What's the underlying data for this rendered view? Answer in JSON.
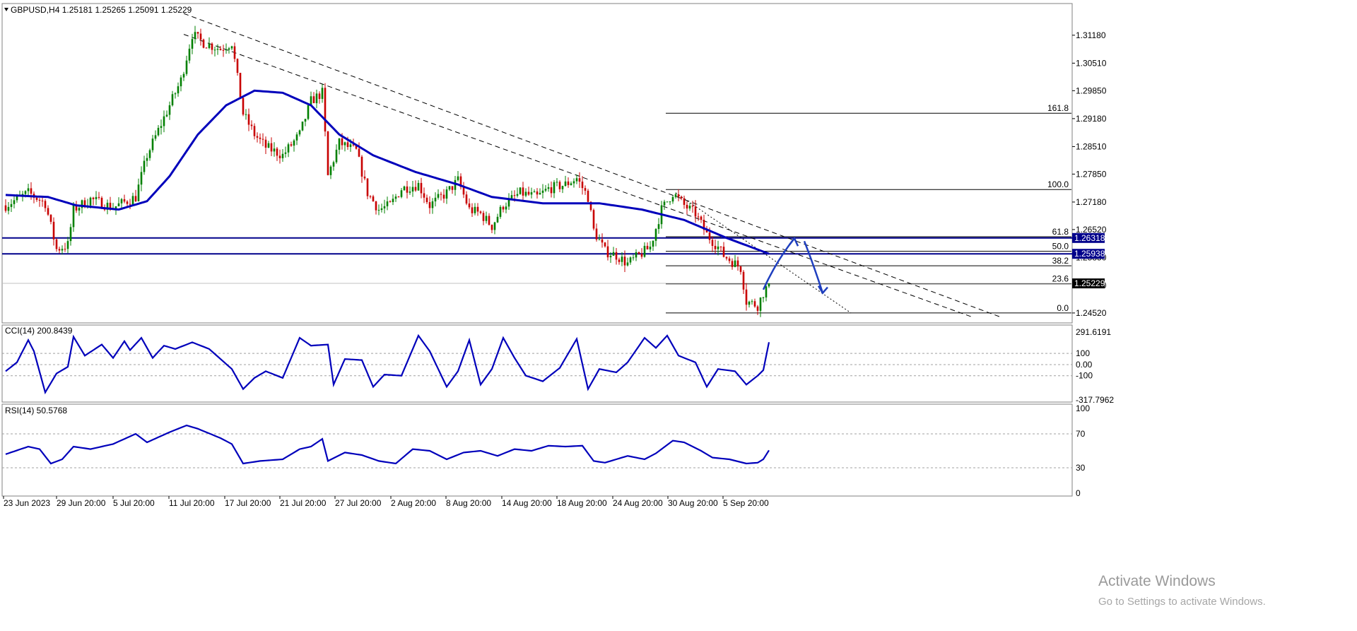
{
  "chart_data": {
    "type": "candlestick",
    "symbol": "GBPUSD",
    "timeframe": "H4",
    "quote": {
      "open": "1.25181",
      "high": "1.25265",
      "low": "1.25091",
      "close": "1.25229"
    },
    "colors": {
      "bull": "#008000",
      "bear": "#c80000",
      "ma": "#0000bb",
      "level": "#00008b",
      "annotation": "#1f3fbf"
    },
    "price_axis": {
      "range": [
        1.244,
        1.3155
      ],
      "ticks": [
        "1.31180",
        "1.30510",
        "1.29850",
        "1.29180",
        "1.28510",
        "1.27850",
        "1.27180",
        "1.26520",
        "1.25850",
        "1.25180",
        "1.24520"
      ],
      "current_price": "1.25229"
    },
    "time_axis": {
      "ticks": [
        "23 Jun 2023",
        "29 Jun 20:00",
        "5 Jul 20:00",
        "11 Jul 20:00",
        "17 Jul 20:00",
        "21 Jul 20:00",
        "27 Jul 20:00",
        "2 Aug 20:00",
        "8 Aug 20:00",
        "14 Aug 20:00",
        "18 Aug 20:00",
        "24 Aug 20:00",
        "30 Aug 20:00",
        "5 Sep 20:00"
      ]
    },
    "horizontal_levels": [
      {
        "price": 1.26318,
        "label": "1.26318"
      },
      {
        "price": 1.25938,
        "label": "1.25938"
      }
    ],
    "fibonacci": {
      "start": 1.2452,
      "end": 1.2748,
      "levels": [
        {
          "ratio": 1.618,
          "label": "161.8"
        },
        {
          "ratio": 1.0,
          "label": "100.0"
        },
        {
          "ratio": 0.618,
          "label": "61.8"
        },
        {
          "ratio": 0.5,
          "label": "50.0"
        },
        {
          "ratio": 0.382,
          "label": "38.2"
        },
        {
          "ratio": 0.236,
          "label": "23.6"
        },
        {
          "ratio": 0.0,
          "label": "0.0"
        }
      ]
    },
    "price_waypoints": [
      [
        0,
        1.271
      ],
      [
        8,
        1.274
      ],
      [
        14,
        1.2715
      ],
      [
        18,
        1.2605
      ],
      [
        22,
        1.2615
      ],
      [
        24,
        1.27
      ],
      [
        30,
        1.2725
      ],
      [
        38,
        1.2705
      ],
      [
        46,
        1.273
      ],
      [
        50,
        1.283
      ],
      [
        56,
        1.292
      ],
      [
        62,
        1.301
      ],
      [
        66,
        1.312
      ],
      [
        70,
        1.31
      ],
      [
        76,
        1.3085
      ],
      [
        80,
        1.31
      ],
      [
        84,
        1.293
      ],
      [
        88,
        1.288
      ],
      [
        92,
        1.285
      ],
      [
        98,
        1.283
      ],
      [
        104,
        1.288
      ],
      [
        108,
        1.296
      ],
      [
        112,
        1.298
      ],
      [
        114,
        1.278
      ],
      [
        118,
        1.286
      ],
      [
        124,
        1.284
      ],
      [
        128,
        1.274
      ],
      [
        132,
        1.27
      ],
      [
        136,
        1.271
      ],
      [
        140,
        1.275
      ],
      [
        146,
        1.276
      ],
      [
        150,
        1.271
      ],
      [
        156,
        1.274
      ],
      [
        160,
        1.277
      ],
      [
        164,
        1.27
      ],
      [
        168,
        1.269
      ],
      [
        172,
        1.266
      ],
      [
        176,
        1.271
      ],
      [
        182,
        1.274
      ],
      [
        188,
        1.273
      ],
      [
        192,
        1.275
      ],
      [
        198,
        1.276
      ],
      [
        202,
        1.2775
      ],
      [
        206,
        1.273
      ],
      [
        208,
        1.265
      ],
      [
        212,
        1.26
      ],
      [
        216,
        1.259
      ],
      [
        220,
        1.257
      ],
      [
        224,
        1.259
      ],
      [
        228,
        1.261
      ],
      [
        232,
        1.27
      ],
      [
        236,
        1.274
      ],
      [
        240,
        1.271
      ],
      [
        244,
        1.269
      ],
      [
        248,
        1.264
      ],
      [
        252,
        1.261
      ],
      [
        254,
        1.259
      ],
      [
        256,
        1.258
      ],
      [
        258,
        1.257
      ],
      [
        260,
        1.256
      ],
      [
        262,
        1.248
      ],
      [
        266,
        1.247
      ],
      [
        268,
        1.25
      ],
      [
        270,
        1.2522
      ]
    ],
    "moving_average_waypoints": [
      [
        0,
        1.2735
      ],
      [
        15,
        1.273
      ],
      [
        25,
        1.271
      ],
      [
        40,
        1.27
      ],
      [
        50,
        1.272
      ],
      [
        58,
        1.278
      ],
      [
        68,
        1.288
      ],
      [
        78,
        1.295
      ],
      [
        88,
        1.2985
      ],
      [
        98,
        1.298
      ],
      [
        108,
        1.295
      ],
      [
        118,
        1.288
      ],
      [
        130,
        1.283
      ],
      [
        145,
        1.279
      ],
      [
        160,
        1.276
      ],
      [
        172,
        1.273
      ],
      [
        190,
        1.2715
      ],
      [
        210,
        1.2715
      ],
      [
        225,
        1.27
      ],
      [
        240,
        1.2675
      ],
      [
        255,
        1.2632
      ],
      [
        270,
        1.2594
      ]
    ],
    "trendlines": [
      {
        "style": "dashed",
        "from": [
          63,
          1.317
        ],
        "to": [
          352,
          1.2442
        ]
      },
      {
        "style": "dashed",
        "from": [
          63,
          1.312
        ],
        "to": [
          342,
          1.2442
        ]
      },
      {
        "style": "dotted",
        "from": [
          237,
          1.274
        ],
        "to": [
          299,
          1.2452
        ]
      }
    ],
    "projection_arrow": {
      "from": [
        268,
        1.2508
      ],
      "peak": [
        279,
        1.2631
      ],
      "end": [
        289,
        1.25
      ]
    },
    "cci": {
      "title": "CCI(14) 200.8439",
      "range": [
        -317.7962,
        291.6191
      ],
      "ticks": [
        "291.6191",
        "100",
        "0.00",
        "-100",
        "-317.7962"
      ],
      "levels": [
        100,
        0,
        -100
      ],
      "waypoints": [
        [
          0,
          -60
        ],
        [
          4,
          20
        ],
        [
          8,
          220
        ],
        [
          10,
          120
        ],
        [
          14,
          -250
        ],
        [
          18,
          -80
        ],
        [
          22,
          -20
        ],
        [
          24,
          250
        ],
        [
          28,
          80
        ],
        [
          34,
          180
        ],
        [
          38,
          60
        ],
        [
          42,
          210
        ],
        [
          44,
          130
        ],
        [
          48,
          240
        ],
        [
          52,
          60
        ],
        [
          56,
          170
        ],
        [
          60,
          140
        ],
        [
          66,
          200
        ],
        [
          72,
          140
        ],
        [
          80,
          -40
        ],
        [
          84,
          -220
        ],
        [
          88,
          -120
        ],
        [
          92,
          -60
        ],
        [
          98,
          -120
        ],
        [
          104,
          240
        ],
        [
          108,
          170
        ],
        [
          114,
          180
        ],
        [
          116,
          -180
        ],
        [
          120,
          50
        ],
        [
          126,
          40
        ],
        [
          130,
          -200
        ],
        [
          134,
          -90
        ],
        [
          140,
          -100
        ],
        [
          146,
          260
        ],
        [
          150,
          120
        ],
        [
          156,
          -200
        ],
        [
          160,
          -60
        ],
        [
          164,
          220
        ],
        [
          168,
          -180
        ],
        [
          172,
          -40
        ],
        [
          176,
          240
        ],
        [
          180,
          60
        ],
        [
          184,
          -100
        ],
        [
          190,
          -150
        ],
        [
          196,
          -30
        ],
        [
          202,
          230
        ],
        [
          206,
          -220
        ],
        [
          210,
          -40
        ],
        [
          216,
          -70
        ],
        [
          220,
          20
        ],
        [
          226,
          240
        ],
        [
          230,
          150
        ],
        [
          234,
          260
        ],
        [
          238,
          80
        ],
        [
          244,
          20
        ],
        [
          248,
          -200
        ],
        [
          252,
          -40
        ],
        [
          258,
          -60
        ],
        [
          262,
          -180
        ],
        [
          266,
          -100
        ],
        [
          268,
          -50
        ],
        [
          270,
          200.8439
        ]
      ]
    },
    "rsi": {
      "title": "RSI(14) 50.5768",
      "range": [
        0,
        100
      ],
      "ticks": [
        "100",
        "70",
        "30",
        "0"
      ],
      "levels": [
        70,
        30
      ],
      "waypoints": [
        [
          0,
          46
        ],
        [
          8,
          55
        ],
        [
          12,
          52
        ],
        [
          16,
          35
        ],
        [
          20,
          40
        ],
        [
          24,
          55
        ],
        [
          30,
          52
        ],
        [
          38,
          58
        ],
        [
          46,
          70
        ],
        [
          50,
          60
        ],
        [
          58,
          72
        ],
        [
          64,
          80
        ],
        [
          68,
          76
        ],
        [
          76,
          65
        ],
        [
          80,
          58
        ],
        [
          84,
          35
        ],
        [
          90,
          38
        ],
        [
          98,
          40
        ],
        [
          104,
          52
        ],
        [
          108,
          55
        ],
        [
          112,
          64
        ],
        [
          114,
          38
        ],
        [
          120,
          48
        ],
        [
          126,
          45
        ],
        [
          132,
          38
        ],
        [
          138,
          35
        ],
        [
          144,
          52
        ],
        [
          150,
          50
        ],
        [
          156,
          40
        ],
        [
          162,
          48
        ],
        [
          168,
          50
        ],
        [
          174,
          44
        ],
        [
          180,
          52
        ],
        [
          186,
          50
        ],
        [
          192,
          56
        ],
        [
          198,
          55
        ],
        [
          204,
          56
        ],
        [
          208,
          38
        ],
        [
          212,
          36
        ],
        [
          216,
          40
        ],
        [
          220,
          44
        ],
        [
          226,
          40
        ],
        [
          230,
          47
        ],
        [
          236,
          62
        ],
        [
          240,
          60
        ],
        [
          246,
          50
        ],
        [
          250,
          42
        ],
        [
          256,
          40
        ],
        [
          262,
          35
        ],
        [
          266,
          36
        ],
        [
          268,
          40
        ],
        [
          270,
          50.5768
        ]
      ]
    }
  },
  "watermark": {
    "title": "Activate Windows",
    "subtitle": "Go to Settings to activate Windows."
  }
}
